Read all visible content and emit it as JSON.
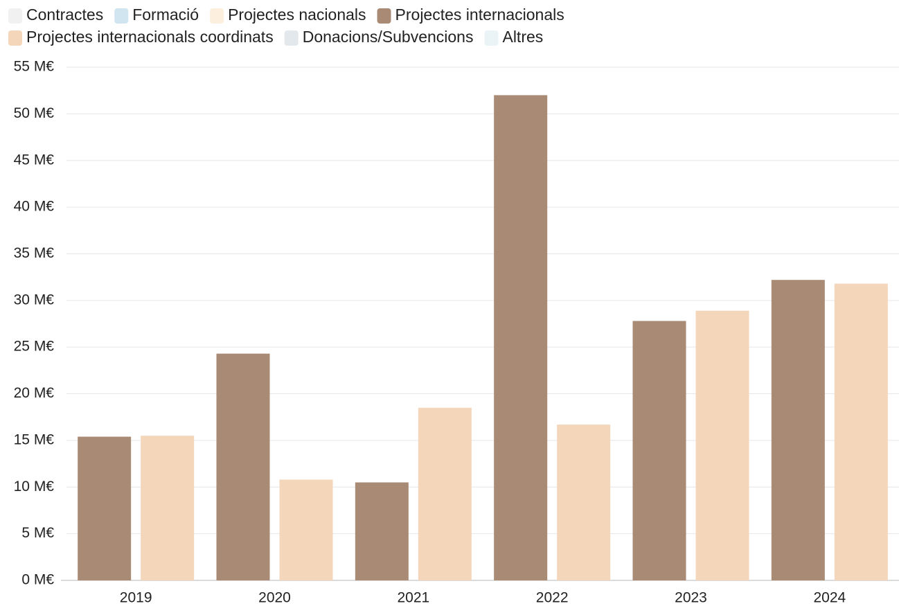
{
  "chart_data": {
    "type": "bar",
    "categories": [
      "2019",
      "2020",
      "2021",
      "2022",
      "2023",
      "2024"
    ],
    "series": [
      {
        "name": "Contractes",
        "color": "#eeeeee",
        "visible": false
      },
      {
        "name": "Formació",
        "color": "#c6deec",
        "visible": false
      },
      {
        "name": "Projectes nacionals",
        "color": "#fdebd4",
        "visible": false
      },
      {
        "name": "Projectes internacionals",
        "color": "#a88a75",
        "visible": true,
        "values": [
          15.4,
          24.3,
          10.5,
          52.0,
          27.8,
          32.2
        ]
      },
      {
        "name": "Projectes internacionals coordinats",
        "color": "#f4d6bb",
        "visible": true,
        "values": [
          15.5,
          10.8,
          18.5,
          16.7,
          28.9,
          31.8
        ]
      },
      {
        "name": "Donacions/Subvencions",
        "color": "#dce2e7",
        "visible": false
      },
      {
        "name": "Altres",
        "color": "#e5f1f4",
        "visible": false
      }
    ],
    "ylim": [
      0,
      55
    ],
    "yticks": [
      {
        "value": 0,
        "label": "0 M€"
      },
      {
        "value": 5,
        "label": "5 M€"
      },
      {
        "value": 10,
        "label": "10 M€"
      },
      {
        "value": 15,
        "label": "15 M€"
      },
      {
        "value": 20,
        "label": "20 M€"
      },
      {
        "value": 25,
        "label": "25 M€"
      },
      {
        "value": 30,
        "label": "30 M€"
      },
      {
        "value": 35,
        "label": "35 M€"
      },
      {
        "value": 40,
        "label": "40 M€"
      },
      {
        "value": 45,
        "label": "45 M€"
      },
      {
        "value": 50,
        "label": "50 M€"
      },
      {
        "value": 55,
        "label": "55 M€"
      }
    ],
    "grid": true
  }
}
